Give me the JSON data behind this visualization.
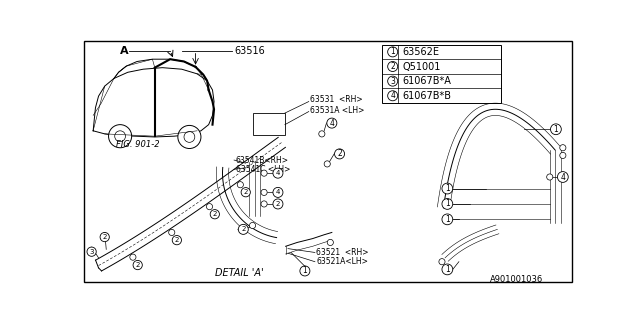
{
  "background_color": "#ffffff",
  "line_color": "#000000",
  "parts_table": {
    "items": [
      {
        "num": "1",
        "code": "63562E"
      },
      {
        "num": "2",
        "code": "Q51001"
      },
      {
        "num": "3",
        "code": "61067B*A"
      },
      {
        "num": "4",
        "code": "61067B*B"
      }
    ]
  },
  "fig_label": "FIG. 901-2",
  "bottom_code": "A901001036",
  "detail_label": "DETAIL 'A'",
  "label_A": "A",
  "label_63516": "63516",
  "label_63531": "63531  <RH>",
  "label_63531A": "63531A <LH>",
  "label_63541B": "63541B<RH>",
  "label_63541C": "63541C <LH>",
  "label_63521": "63521  <RH>",
  "label_63521A": "63521A<LH>"
}
